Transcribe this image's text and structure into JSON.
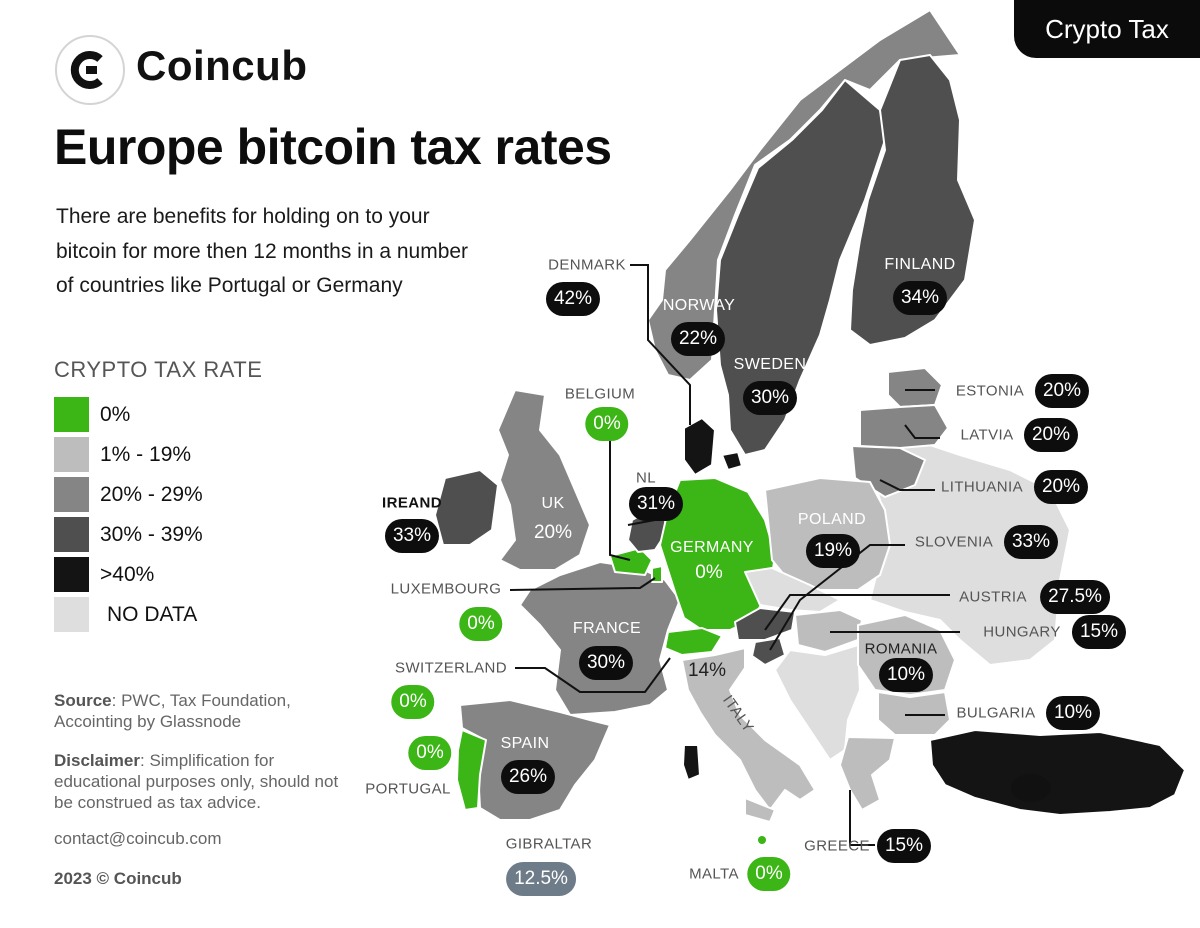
{
  "badge": "Crypto Tax",
  "brand": {
    "name": "Coincub"
  },
  "title": "Europe bitcoin tax rates",
  "description": "There are benefits for holding on to your bitcoin for more then 12 months in a number of countries like Portugal or Germany",
  "legend": {
    "title": "CRYPTO TAX RATE",
    "items": [
      {
        "label": "0%",
        "color": "#3cb516"
      },
      {
        "label": "1% - 19%",
        "color": "#bdbdbd"
      },
      {
        "label": "20% - 29%",
        "color": "#858585"
      },
      {
        "label": "30% - 39%",
        "color": "#4f4f4f"
      },
      {
        "label": ">40%",
        "color": "#141414"
      },
      {
        "label": "NO DATA",
        "color": "#dedede"
      }
    ]
  },
  "footer": {
    "source_label": "Source",
    "source_text": ": PWC, Tax Foundation, Accointing by Glassnode",
    "disclaimer_label": "Disclaimer",
    "disclaimer_text": ": Simplification for educational purposes only, should not be construed as tax advice.",
    "contact": "contact@coincub.com",
    "copyright": "2023 © Coincub"
  },
  "countries": {
    "denmark": {
      "name": "DENMARK",
      "rate": "42%"
    },
    "norway": {
      "name": "NORWAY",
      "rate": "22%"
    },
    "sweden": {
      "name": "SWEDEN",
      "rate": "30%"
    },
    "finland": {
      "name": "FINLAND",
      "rate": "34%"
    },
    "estonia": {
      "name": "ESTONIA",
      "rate": "20%"
    },
    "latvia": {
      "name": "LATVIA",
      "rate": "20%"
    },
    "lithuania": {
      "name": "LITHUANIA",
      "rate": "20%"
    },
    "belgium": {
      "name": "BELGIUM",
      "rate": "0%"
    },
    "netherlands": {
      "name": "NL",
      "rate": "31%"
    },
    "ireland": {
      "name": "IREAND",
      "rate": "33%"
    },
    "uk": {
      "name": "UK",
      "rate": "20%"
    },
    "germany": {
      "name": "GERMANY",
      "rate": "0%"
    },
    "poland": {
      "name": "POLAND",
      "rate": "19%"
    },
    "slovenia": {
      "name": "SLOVENIA",
      "rate": "33%"
    },
    "austria": {
      "name": "AUSTRIA",
      "rate": "27.5%"
    },
    "hungary": {
      "name": "HUNGARY",
      "rate": "15%"
    },
    "luxembourg": {
      "name": "LUXEMBOURG",
      "rate": "0%"
    },
    "france": {
      "name": "FRANCE",
      "rate": "30%"
    },
    "switzerland": {
      "name": "SWITZERLAND",
      "rate": "0%"
    },
    "italy": {
      "name": "ITALY",
      "rate": "14%"
    },
    "romania": {
      "name": "ROMANIA",
      "rate": "10%"
    },
    "bulgaria": {
      "name": "BULGARIA",
      "rate": "10%"
    },
    "portugal": {
      "name": "PORTUGAL",
      "rate": "0%"
    },
    "spain": {
      "name": "SPAIN",
      "rate": "26%"
    },
    "gibraltar": {
      "name": "GIBRALTAR",
      "rate": "12.5%"
    },
    "malta": {
      "name": "MALTA",
      "rate": "0%"
    },
    "greece": {
      "name": "GREECE",
      "rate": "15%"
    }
  }
}
